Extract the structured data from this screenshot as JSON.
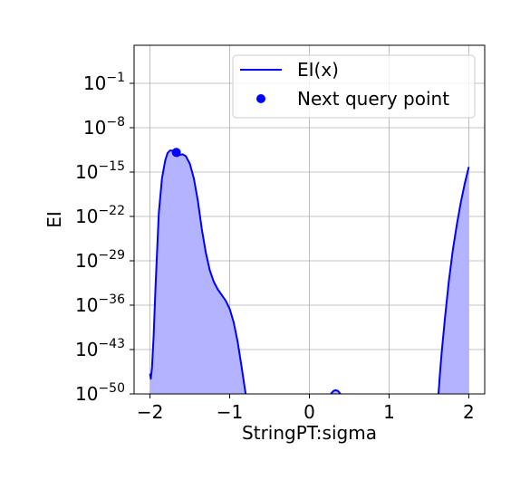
{
  "chart_data": {
    "type": "line",
    "xlabel": "StringPT:sigma",
    "ylabel": "EI",
    "xlim": [
      -2.2,
      2.2
    ],
    "ylim_log10": [
      -50,
      5
    ],
    "y_scale": "log",
    "grid": true,
    "legend_position": "top-right",
    "colors": {
      "line": "#0000ff",
      "fill": "#b3b3ff",
      "point": "#0000ff"
    },
    "x_ticks": [
      {
        "value": -2,
        "label": "−2"
      },
      {
        "value": -1,
        "label": "−1"
      },
      {
        "value": 0,
        "label": "0"
      },
      {
        "value": 1,
        "label": "1"
      },
      {
        "value": 2,
        "label": "2"
      }
    ],
    "y_ticks": [
      {
        "value": -50,
        "base": "10",
        "exp": "−50"
      },
      {
        "value": -43,
        "base": "10",
        "exp": "−43"
      },
      {
        "value": -36,
        "base": "10",
        "exp": "−36"
      },
      {
        "value": -29,
        "base": "10",
        "exp": "−29"
      },
      {
        "value": -22,
        "base": "10",
        "exp": "−22"
      },
      {
        "value": -15,
        "base": "10",
        "exp": "−15"
      },
      {
        "value": -8,
        "base": "10",
        "exp": "−8"
      },
      {
        "value": -1,
        "base": "10",
        "exp": "−1"
      }
    ],
    "series": [
      {
        "name": "EI(x)",
        "segments": [
          [
            [
              -2.0,
              -46.8
            ],
            [
              -1.99,
              -47.6
            ],
            [
              -1.975,
              -45.8
            ],
            [
              -1.955,
              -41.0
            ],
            [
              -1.93,
              -32.8
            ],
            [
              -1.89,
              -21.5
            ],
            [
              -1.85,
              -16.0
            ],
            [
              -1.81,
              -13.2
            ],
            [
              -1.78,
              -12.0
            ],
            [
              -1.75,
              -11.6
            ],
            [
              -1.72,
              -11.6
            ],
            [
              -1.69,
              -12.2
            ],
            [
              -1.66,
              -12.5
            ],
            [
              -1.63,
              -12.3
            ],
            [
              -1.59,
              -12.2
            ],
            [
              -1.55,
              -12.5
            ],
            [
              -1.5,
              -13.7
            ],
            [
              -1.45,
              -16.0
            ],
            [
              -1.4,
              -19.5
            ],
            [
              -1.35,
              -24.0
            ],
            [
              -1.3,
              -27.7
            ],
            [
              -1.25,
              -30.5
            ],
            [
              -1.2,
              -32.3
            ],
            [
              -1.15,
              -33.5
            ],
            [
              -1.1,
              -34.4
            ],
            [
              -1.05,
              -35.3
            ],
            [
              -1.0,
              -36.6
            ],
            [
              -0.95,
              -38.7
            ],
            [
              -0.9,
              -41.8
            ],
            [
              -0.85,
              -45.8
            ],
            [
              -0.8,
              -50.2
            ]
          ],
          [
            [
              0.27,
              -50
            ],
            [
              0.3,
              -49.55
            ],
            [
              0.33,
              -49.4
            ],
            [
              0.36,
              -49.55
            ],
            [
              0.39,
              -50
            ]
          ],
          [
            [
              1.62,
              -50
            ],
            [
              1.64,
              -46.5
            ],
            [
              1.66,
              -43.5
            ],
            [
              1.7,
              -38.2
            ],
            [
              1.75,
              -32.2
            ],
            [
              1.8,
              -27.3
            ],
            [
              1.85,
              -23.3
            ],
            [
              1.9,
              -19.8
            ],
            [
              1.95,
              -16.8
            ],
            [
              2.0,
              -14.2
            ]
          ]
        ]
      },
      {
        "name": "Next query point",
        "points": [
          [
            -1.67,
            -11.9
          ]
        ]
      }
    ]
  }
}
